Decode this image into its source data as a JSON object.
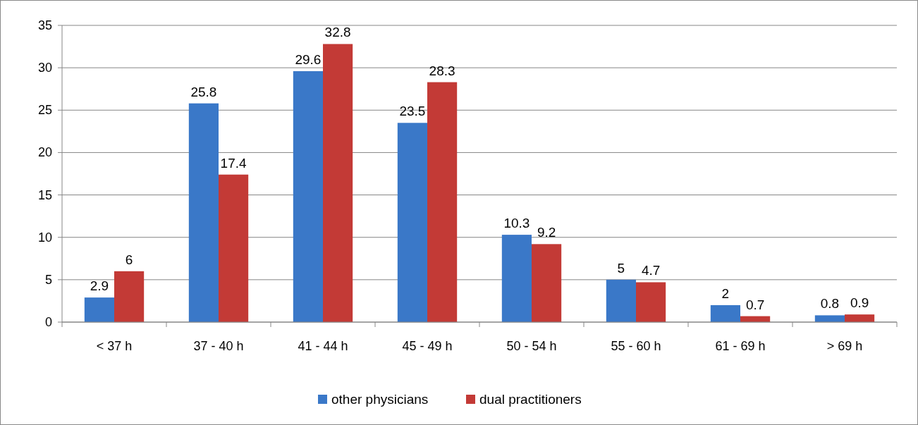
{
  "chart_data": {
    "type": "bar",
    "categories": [
      "< 37 h",
      "37 - 40 h",
      "41 - 44 h",
      "45 - 49 h",
      "50 - 54 h",
      "55 - 60 h",
      "61 - 69 h",
      "> 69 h"
    ],
    "series": [
      {
        "name": "other physicians",
        "color": "#3a78c8",
        "values": [
          2.9,
          25.8,
          29.6,
          23.5,
          10.3,
          5,
          2,
          0.8
        ]
      },
      {
        "name": "dual practitioners",
        "color": "#c33a36",
        "values": [
          6,
          17.4,
          32.8,
          28.3,
          9.2,
          4.7,
          0.7,
          0.9
        ]
      }
    ],
    "ylim": [
      0,
      35
    ],
    "yticks": [
      0,
      5,
      10,
      15,
      20,
      25,
      30,
      35
    ],
    "grid": "y",
    "legend": "bottom",
    "data_labels": true
  }
}
